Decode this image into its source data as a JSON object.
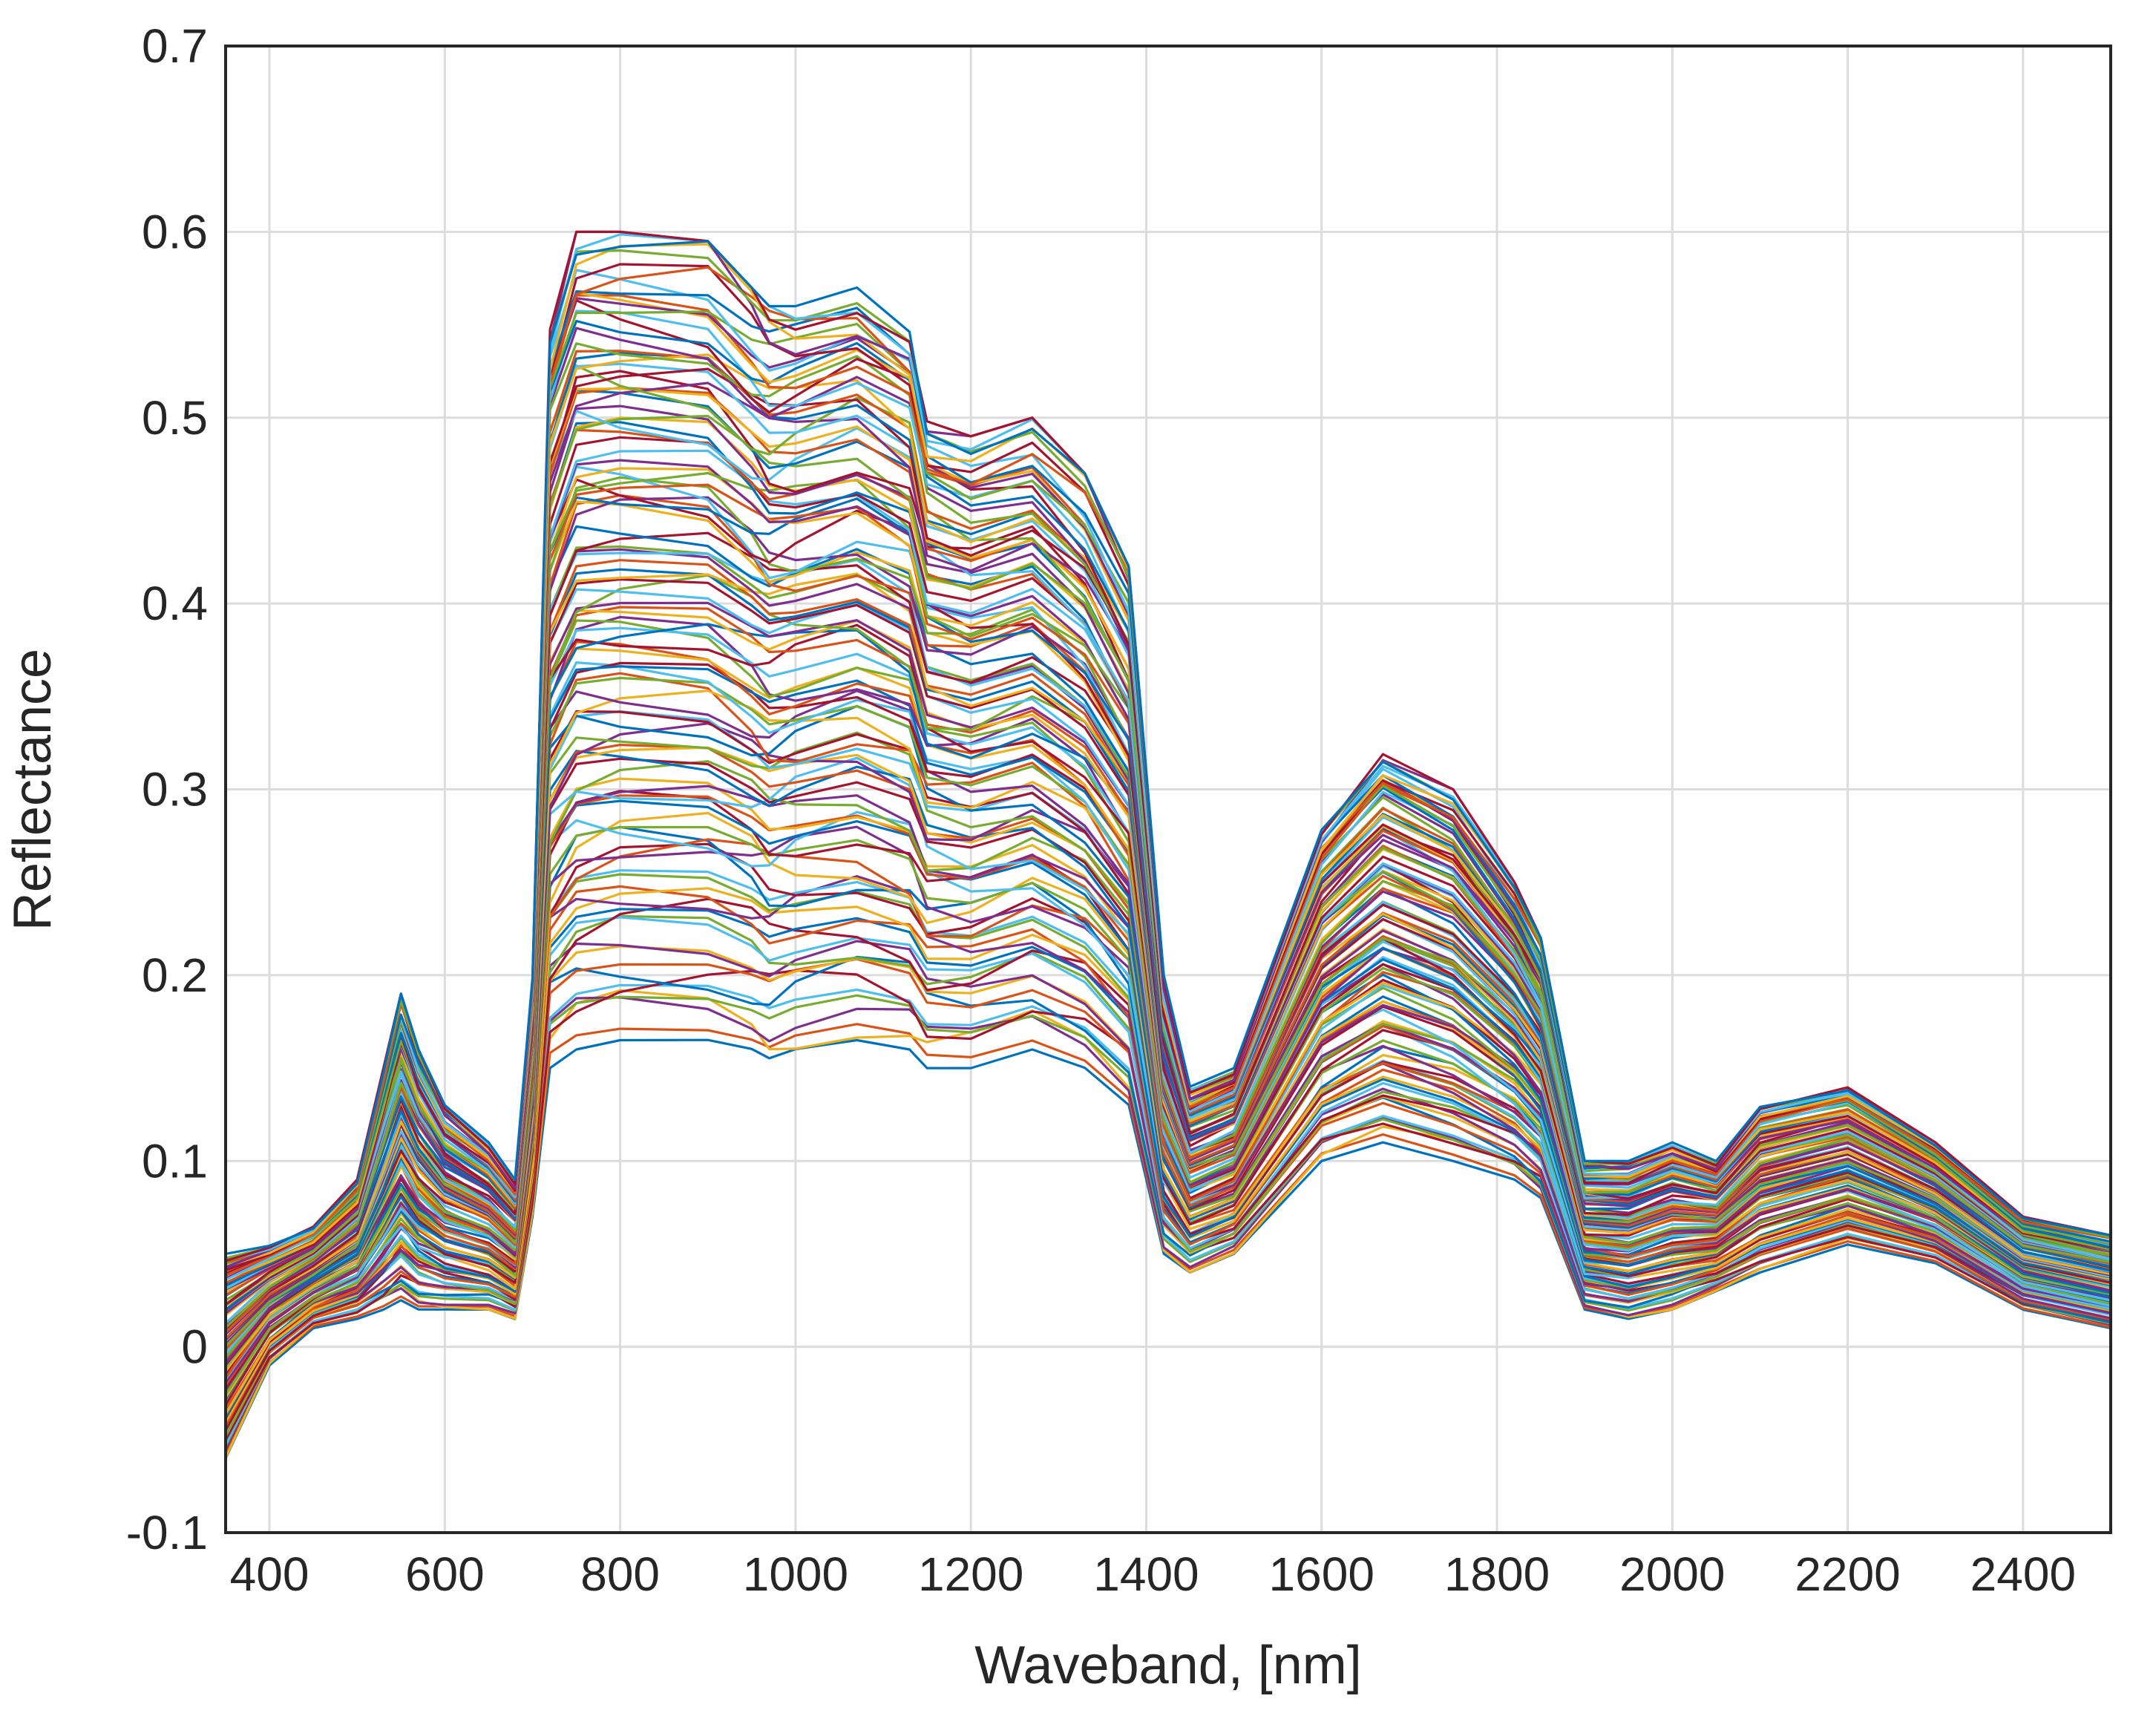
{
  "chart_data": {
    "type": "line",
    "title": "",
    "xlabel": "Waveband, [nm]",
    "ylabel": "Reflectance",
    "xlim": [
      350,
      2500
    ],
    "ylim": [
      -0.1,
      0.7
    ],
    "grid": true,
    "x_ticks": [
      "400",
      "600",
      "800",
      "1000",
      "1200",
      "1400",
      "1600",
      "1800",
      "2000",
      "2200",
      "2400"
    ],
    "y_ticks": [
      "-0.1",
      "0",
      "0.1",
      "0.2",
      "0.3",
      "0.4",
      "0.5",
      "0.6",
      "0.7"
    ],
    "series_count": 120,
    "colors": [
      "#0072BD",
      "#D95319",
      "#EDB120",
      "#7E2F8E",
      "#77AC30",
      "#4DBEEE",
      "#A2142F"
    ],
    "x": [
      350,
      400,
      450,
      500,
      530,
      550,
      570,
      600,
      650,
      680,
      700,
      720,
      750,
      800,
      900,
      950,
      970,
      1000,
      1070,
      1130,
      1150,
      1200,
      1270,
      1330,
      1380,
      1420,
      1450,
      1500,
      1600,
      1670,
      1750,
      1820,
      1850,
      1900,
      1950,
      2000,
      2050,
      2100,
      2200,
      2300,
      2400,
      2500
    ],
    "envelope": {
      "upper": [
        0.05,
        0.055,
        0.065,
        0.09,
        0.15,
        0.19,
        0.16,
        0.13,
        0.11,
        0.09,
        0.2,
        0.55,
        0.6,
        0.6,
        0.595,
        0.57,
        0.56,
        0.56,
        0.57,
        0.55,
        0.5,
        0.49,
        0.5,
        0.47,
        0.42,
        0.2,
        0.14,
        0.15,
        0.28,
        0.32,
        0.3,
        0.25,
        0.22,
        0.1,
        0.1,
        0.11,
        0.1,
        0.13,
        0.14,
        0.11,
        0.07,
        0.06
      ],
      "lower": [
        -0.06,
        -0.01,
        0.01,
        0.015,
        0.02,
        0.025,
        0.02,
        0.02,
        0.02,
        0.015,
        0.07,
        0.15,
        0.16,
        0.165,
        0.165,
        0.16,
        0.155,
        0.16,
        0.165,
        0.16,
        0.15,
        0.15,
        0.16,
        0.15,
        0.13,
        0.05,
        0.04,
        0.05,
        0.1,
        0.11,
        0.1,
        0.09,
        0.08,
        0.02,
        0.015,
        0.02,
        0.03,
        0.04,
        0.055,
        0.045,
        0.02,
        0.01
      ]
    }
  }
}
